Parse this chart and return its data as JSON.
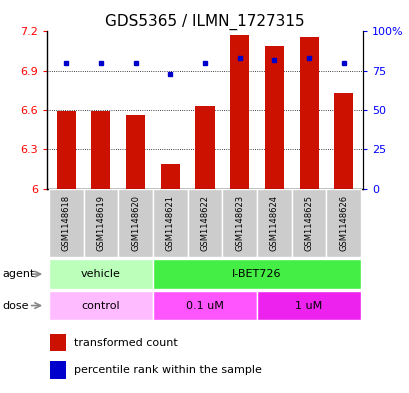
{
  "title": "GDS5365 / ILMN_1727315",
  "samples": [
    "GSM1148618",
    "GSM1148619",
    "GSM1148620",
    "GSM1148621",
    "GSM1148622",
    "GSM1148623",
    "GSM1148624",
    "GSM1148625",
    "GSM1148626"
  ],
  "bar_values": [
    6.59,
    6.59,
    6.56,
    6.19,
    6.63,
    7.17,
    7.09,
    7.16,
    6.73
  ],
  "percentile_values": [
    80,
    80,
    80,
    73,
    80,
    83,
    82,
    83,
    80
  ],
  "bar_color": "#cc1100",
  "dot_color": "#0000cc",
  "ylim_left": [
    6.0,
    7.2
  ],
  "ylim_right": [
    0,
    100
  ],
  "yticks_left": [
    6.0,
    6.3,
    6.6,
    6.9,
    7.2
  ],
  "yticks_right": [
    0,
    25,
    50,
    75,
    100
  ],
  "ytick_labels_left": [
    "6",
    "6.3",
    "6.6",
    "6.9",
    "7.2"
  ],
  "ytick_labels_right": [
    "0",
    "25",
    "50",
    "75",
    "100%"
  ],
  "grid_values": [
    6.3,
    6.6,
    6.9
  ],
  "agent_row": [
    {
      "label": "vehicle",
      "start": 0,
      "end": 3,
      "color": "#bbffbb"
    },
    {
      "label": "I-BET726",
      "start": 3,
      "end": 9,
      "color": "#44ee44"
    }
  ],
  "dose_row": [
    {
      "label": "control",
      "start": 0,
      "end": 3,
      "color": "#ffbbff"
    },
    {
      "label": "0.1 uM",
      "start": 3,
      "end": 6,
      "color": "#ff55ff"
    },
    {
      "label": "1 uM",
      "start": 6,
      "end": 9,
      "color": "#ee22ee"
    }
  ],
  "legend_items": [
    {
      "label": "transformed count",
      "color": "#cc1100"
    },
    {
      "label": "percentile rank within the sample",
      "color": "#0000cc"
    }
  ],
  "sample_bg_color": "#cccccc",
  "bar_width": 0.55,
  "title_fontsize": 11,
  "tick_fontsize": 8,
  "label_fontsize": 8,
  "sample_fontsize": 6
}
